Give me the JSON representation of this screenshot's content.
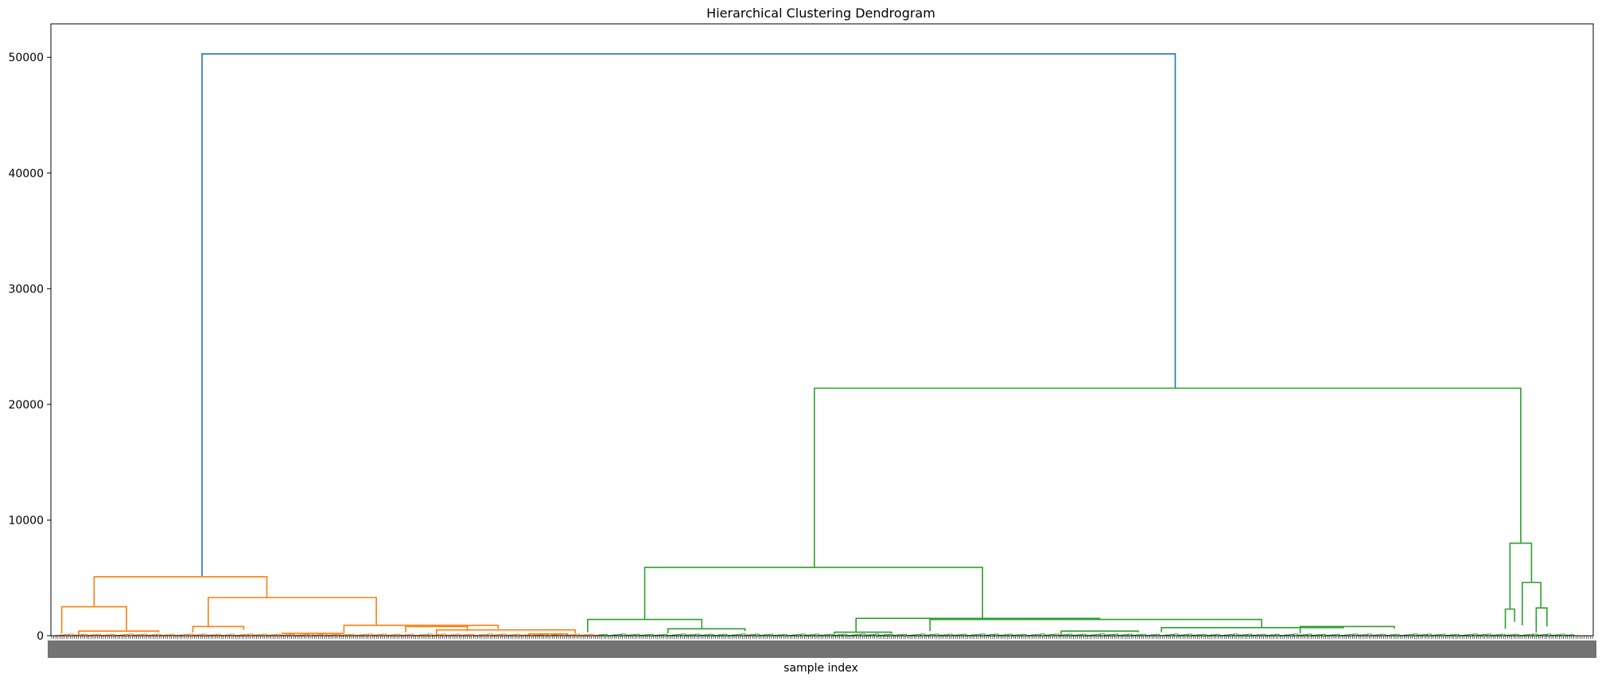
{
  "chart_data": {
    "type": "dendrogram",
    "title": "Hierarchical Clustering Dendrogram",
    "xlabel": "sample index",
    "ylabel": "",
    "ylim": [
      0,
      52900
    ],
    "xlim": [
      0,
      1000
    ],
    "yticks": [
      0,
      10000,
      20000,
      30000,
      40000,
      50000
    ],
    "ytick_labels": [
      "0",
      "10000",
      "20000",
      "30000",
      "40000",
      "50000"
    ],
    "grid": false,
    "legend": "none",
    "colors": {
      "root": "#1f77b4",
      "cluster_1": "#ff7f0e",
      "cluster_2": "#2ca02c"
    },
    "merges": [
      {
        "x": [
          98,
          98,
          729,
          729
        ],
        "y": [
          5100,
          50300,
          50300,
          21400
        ],
        "color": "root"
      },
      {
        "x": [
          28,
          28,
          140,
          140
        ],
        "y": [
          2500,
          5100,
          5100,
          3300
        ],
        "color": "cluster_1"
      },
      {
        "x": [
          7,
          7,
          49,
          49
        ],
        "y": [
          200,
          2500,
          2500,
          400
        ],
        "color": "cluster_1"
      },
      {
        "x": [
          102,
          102,
          211,
          211
        ],
        "y": [
          800,
          3300,
          3300,
          900
        ],
        "color": "cluster_1"
      },
      {
        "x": [
          18,
          18,
          70,
          70
        ],
        "y": [
          100,
          400,
          400,
          300
        ],
        "color": "cluster_1"
      },
      {
        "x": [
          92,
          92,
          125,
          125
        ],
        "y": [
          300,
          800,
          800,
          500
        ],
        "color": "cluster_1"
      },
      {
        "x": [
          190,
          190,
          290,
          290
        ],
        "y": [
          300,
          900,
          900,
          600
        ],
        "color": "cluster_1"
      },
      {
        "x": [
          230,
          230,
          270,
          270
        ],
        "y": [
          300,
          800,
          800,
          400
        ],
        "color": "cluster_1"
      },
      {
        "x": [
          250,
          250,
          340,
          340
        ],
        "y": [
          100,
          500,
          500,
          200
        ],
        "color": "cluster_1"
      },
      {
        "x": [
          150,
          150,
          190,
          190
        ],
        "y": [
          100,
          200,
          200,
          100
        ],
        "color": "cluster_1"
      },
      {
        "x": [
          310,
          310,
          335,
          335
        ],
        "y": [
          50,
          150,
          150,
          50
        ],
        "color": "cluster_1"
      },
      {
        "x": [
          495,
          495,
          953,
          953
        ],
        "y": [
          5900,
          21400,
          21400,
          8000
        ],
        "color": "cluster_2"
      },
      {
        "x": [
          385,
          385,
          604,
          604
        ],
        "y": [
          1400,
          5900,
          5900,
          1500
        ],
        "color": "cluster_2"
      },
      {
        "x": [
          348,
          348,
          422,
          422
        ],
        "y": [
          300,
          1400,
          1400,
          600
        ],
        "color": "cluster_2"
      },
      {
        "x": [
          400,
          400,
          450,
          450
        ],
        "y": [
          200,
          600,
          600,
          400
        ],
        "color": "cluster_2"
      },
      {
        "x": [
          522,
          522,
          680,
          680
        ],
        "y": [
          300,
          1500,
          1500,
          1400
        ],
        "color": "cluster_2"
      },
      {
        "x": [
          570,
          570,
          785,
          785
        ],
        "y": [
          400,
          1400,
          1400,
          700
        ],
        "color": "cluster_2"
      },
      {
        "x": [
          720,
          720,
          838,
          838
        ],
        "y": [
          300,
          700,
          700,
          800
        ],
        "color": "cluster_2"
      },
      {
        "x": [
          810,
          810,
          871,
          871
        ],
        "y": [
          200,
          800,
          800,
          600
        ],
        "color": "cluster_2"
      },
      {
        "x": [
          508,
          508,
          545,
          545
        ],
        "y": [
          100,
          300,
          300,
          200
        ],
        "color": "cluster_2"
      },
      {
        "x": [
          655,
          655,
          705,
          705
        ],
        "y": [
          100,
          400,
          400,
          300
        ],
        "color": "cluster_2"
      },
      {
        "x": [
          946,
          946,
          960,
          960
        ],
        "y": [
          2300,
          8000,
          8000,
          4600
        ],
        "color": "cluster_2"
      },
      {
        "x": [
          954,
          954,
          966,
          966
        ],
        "y": [
          900,
          4600,
          4600,
          2400
        ],
        "color": "cluster_2"
      },
      {
        "x": [
          943,
          943,
          949,
          949
        ],
        "y": [
          600,
          2300,
          2300,
          1200
        ],
        "color": "cluster_2"
      },
      {
        "x": [
          963,
          963,
          970,
          970
        ],
        "y": [
          300,
          2400,
          2400,
          800
        ],
        "color": "cluster_2"
      }
    ]
  }
}
